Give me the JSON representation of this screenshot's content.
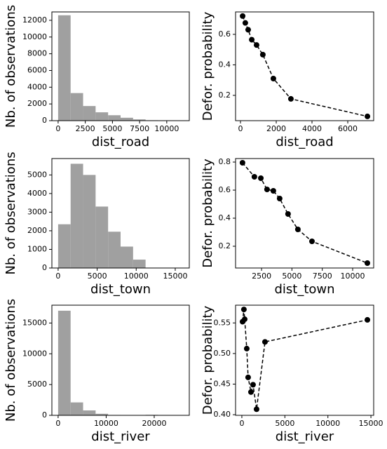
{
  "chart_data": [
    {
      "type": "histogram",
      "xlabel": "dist_road",
      "ylabel": "Nb. of observations",
      "color": "#a0a0a0",
      "bins": [
        0,
        1150,
        2300,
        3450,
        4600,
        5750,
        6900,
        8050,
        9200,
        10350,
        11500
      ],
      "values": [
        12600,
        3300,
        1750,
        1000,
        650,
        350,
        150,
        50,
        20,
        10
      ],
      "xlim": [
        -575,
        12075
      ],
      "xticks": [
        0,
        2500,
        5000,
        7500,
        10000
      ],
      "ylim": [
        0,
        13000
      ],
      "yticks": [
        0,
        2000,
        4000,
        6000,
        8000,
        10000,
        12000
      ]
    },
    {
      "type": "line",
      "xlabel": "dist_road",
      "ylabel": "Defor. probability",
      "color": "#000000",
      "x": [
        120,
        270,
        430,
        630,
        900,
        1250,
        1840,
        2820,
        7100
      ],
      "values": [
        0.72,
        0.675,
        0.63,
        0.565,
        0.53,
        0.467,
        0.31,
        0.177,
        0.062
      ],
      "xlim": [
        -275,
        7450
      ],
      "xticks": [
        0,
        2000,
        4000,
        6000
      ],
      "ylim": [
        0.034,
        0.747
      ],
      "yticks": [
        0.2,
        0.4,
        0.6
      ]
    },
    {
      "type": "histogram",
      "xlabel": "dist_town",
      "ylabel": "Nb. of observations",
      "color": "#a0a0a0",
      "bins": [
        0,
        1600,
        3200,
        4800,
        6400,
        8000,
        9600,
        11200,
        12800,
        14400,
        16000
      ],
      "values": [
        2350,
        5600,
        5000,
        3300,
        1950,
        1150,
        450,
        10,
        5,
        2
      ],
      "xlim": [
        -800,
        16800
      ],
      "xticks": [
        0,
        5000,
        10000,
        15000
      ],
      "ylim": [
        0,
        5880
      ],
      "yticks": [
        0,
        1000,
        2000,
        3000,
        4000,
        5000
      ]
    },
    {
      "type": "line",
      "xlabel": "dist_town",
      "ylabel": "Defor. probability",
      "color": "#000000",
      "x": [
        930,
        1910,
        2440,
        2950,
        3470,
        3990,
        4680,
        5490,
        6650,
        11210
      ],
      "values": [
        0.795,
        0.695,
        0.685,
        0.605,
        0.595,
        0.54,
        0.43,
        0.32,
        0.235,
        0.08
      ],
      "xlim": [
        360,
        11730
      ],
      "xticks": [
        2500,
        5000,
        7500,
        10000
      ],
      "ylim": [
        0.045,
        0.825
      ],
      "yticks": [
        0.2,
        0.4,
        0.6,
        0.8
      ]
    },
    {
      "type": "histogram",
      "xlabel": "dist_river",
      "ylabel": "Nb. of observations",
      "color": "#a0a0a0",
      "bins": [
        0,
        2600,
        5200,
        7800,
        10400,
        13000,
        15600,
        18200,
        20800,
        23400,
        26000
      ],
      "values": [
        17000,
        2100,
        800,
        250,
        60,
        20,
        5,
        80,
        60,
        30
      ],
      "xlim": [
        -1300,
        27300
      ],
      "xticks": [
        0,
        10000,
        20000
      ],
      "ylim": [
        0,
        17900
      ],
      "yticks": [
        0,
        5000,
        10000,
        15000
      ]
    },
    {
      "type": "line",
      "xlabel": "dist_river",
      "ylabel": "Defor. probability",
      "color": "#000000",
      "x": [
        80,
        240,
        330,
        570,
        730,
        1060,
        1300,
        1710,
        2690,
        14590
      ],
      "values": [
        0.552,
        0.572,
        0.556,
        0.508,
        0.461,
        0.437,
        0.449,
        0.409,
        0.519,
        0.555
      ],
      "xlim": [
        -730,
        15320
      ],
      "xticks": [
        0,
        5000,
        10000,
        15000
      ],
      "ylim": [
        0.399,
        0.579
      ],
      "yticks": [
        {
          "value": 0.4,
          "label": "0.40"
        },
        {
          "value": 0.45,
          "label": "0.45"
        },
        {
          "value": 0.5,
          "label": "0.50"
        },
        {
          "value": 0.55,
          "label": "0.55"
        }
      ]
    }
  ]
}
